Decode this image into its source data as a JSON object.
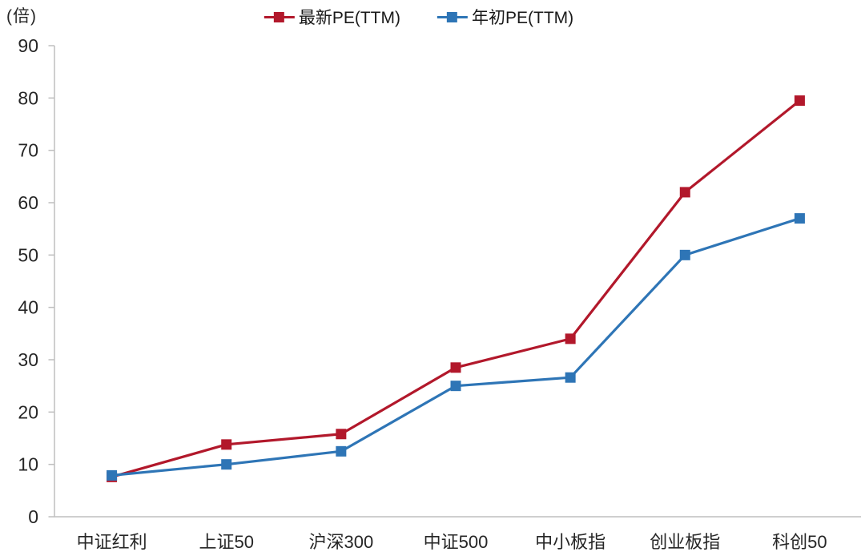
{
  "chart_data": {
    "type": "line",
    "title": "",
    "ylabel_unit": "(倍)",
    "categories": [
      "中证红利",
      "上证50",
      "沪深300",
      "中证500",
      "中小板指",
      "创业板指",
      "科创50"
    ],
    "series": [
      {
        "name": "最新PE(TTM)",
        "color": "#B2182B",
        "values": [
          7.6,
          13.8,
          15.8,
          28.5,
          34.0,
          62.0,
          79.5
        ]
      },
      {
        "name": "年初PE(TTM)",
        "color": "#2E75B6",
        "values": [
          7.9,
          10.0,
          12.5,
          25.0,
          26.6,
          50.0,
          57.0
        ]
      }
    ],
    "ylim": [
      0,
      90
    ],
    "ytick_step": 10,
    "grid": false,
    "legend_position": "top-center",
    "marker": "square",
    "axis_color": "#BFBFBF",
    "text_color": "#262626"
  }
}
